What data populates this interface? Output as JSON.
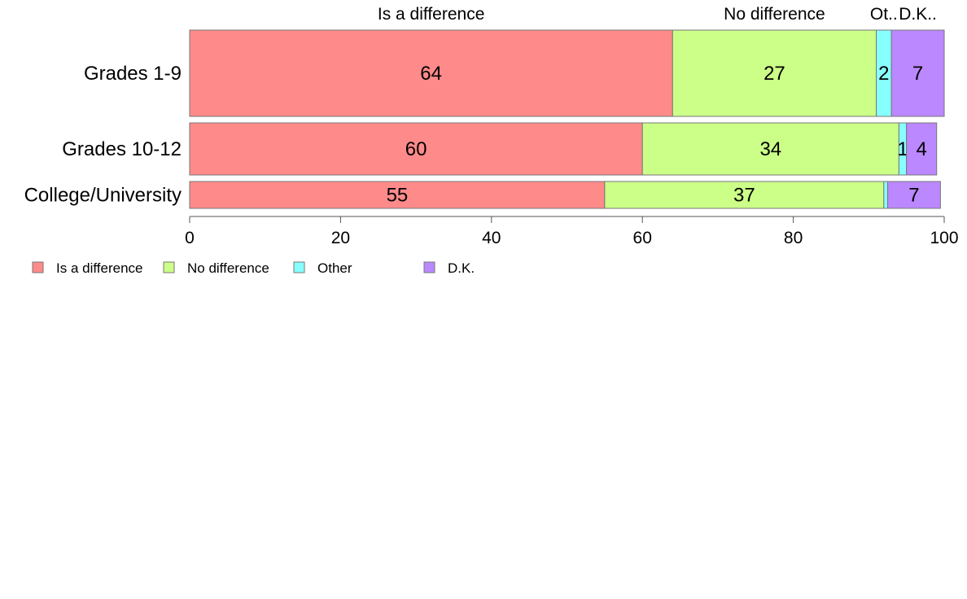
{
  "chart_data": {
    "type": "bar",
    "orientation": "horizontal",
    "stacked": true,
    "categories": [
      "Grades 1-9",
      "Grades 10-12",
      "College/University"
    ],
    "series": [
      {
        "name": "Is a difference",
        "color": "#FF8A8A",
        "values": [
          64,
          60,
          55
        ]
      },
      {
        "name": "No difference",
        "color": "#CCFF88",
        "values": [
          27,
          34,
          37
        ]
      },
      {
        "name": "Other",
        "color": "#88FFFF",
        "values": [
          2,
          1,
          0.5
        ]
      },
      {
        "name": "D.K.",
        "color": "#BB88FF",
        "values": [
          7,
          4,
          7
        ]
      }
    ],
    "top_labels": [
      "Is a difference",
      "No difference",
      "Ot..",
      "D.K.."
    ],
    "segment_labels": [
      [
        "64",
        "27",
        "2",
        "7"
      ],
      [
        "60",
        "34",
        "1",
        "4"
      ],
      [
        "55",
        "37",
        "",
        "7"
      ]
    ],
    "x_ticks": [
      "0",
      "20",
      "40",
      "60",
      "80",
      "100"
    ],
    "xlim": [
      0,
      100
    ],
    "legend": {
      "position": "bottom-left",
      "labels": [
        "Is a difference",
        "No difference",
        "Other",
        "D.K."
      ]
    }
  }
}
